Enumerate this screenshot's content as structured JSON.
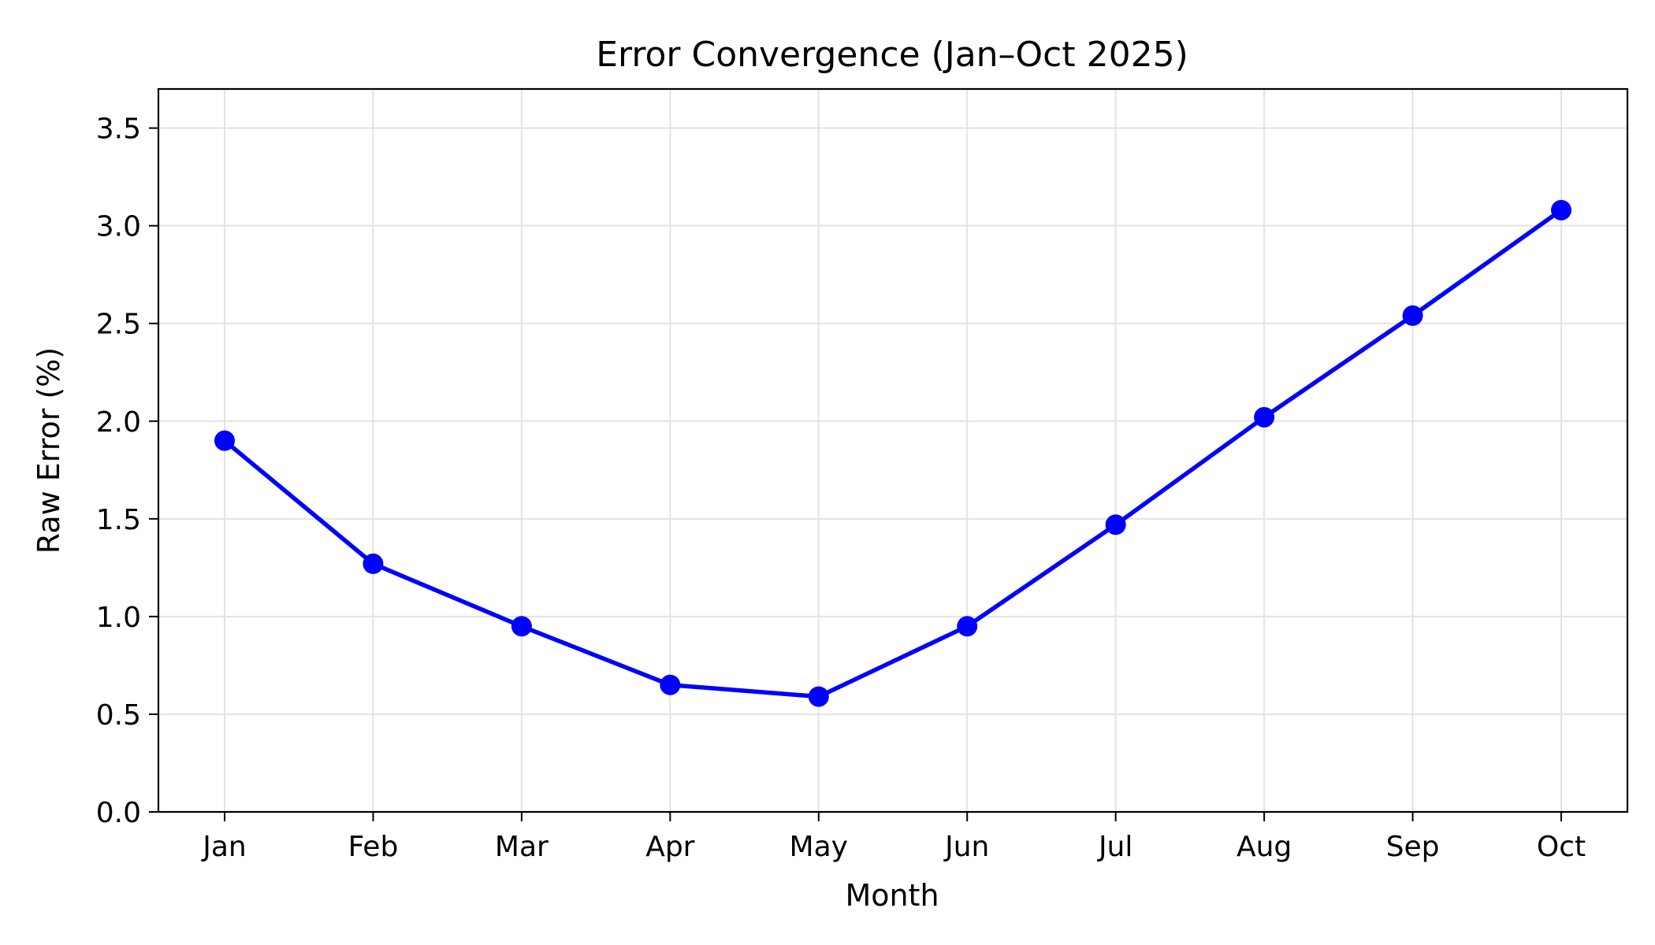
{
  "chart_data": {
    "type": "line",
    "title": "Error Convergence (Jan–Oct 2025)",
    "xlabel": "Month",
    "ylabel": "Raw Error (%)",
    "categories": [
      "Jan",
      "Feb",
      "Mar",
      "Apr",
      "May",
      "Jun",
      "Jul",
      "Aug",
      "Sep",
      "Oct"
    ],
    "series": [
      {
        "values": [
          1.9,
          1.27,
          0.95,
          0.65,
          0.59,
          0.95,
          1.47,
          2.02,
          2.54,
          3.08
        ],
        "color": "#0000ff",
        "marker": "circle"
      }
    ],
    "ylim": [
      0,
      3.7
    ],
    "yticks": [
      0.0,
      0.5,
      1.0,
      1.5,
      2.0,
      2.5,
      3.0,
      3.5
    ],
    "ytick_labels": [
      "0.0",
      "0.5",
      "1.0",
      "1.5",
      "2.0",
      "2.5",
      "3.0",
      "3.5"
    ],
    "grid": true,
    "legend": false
  }
}
